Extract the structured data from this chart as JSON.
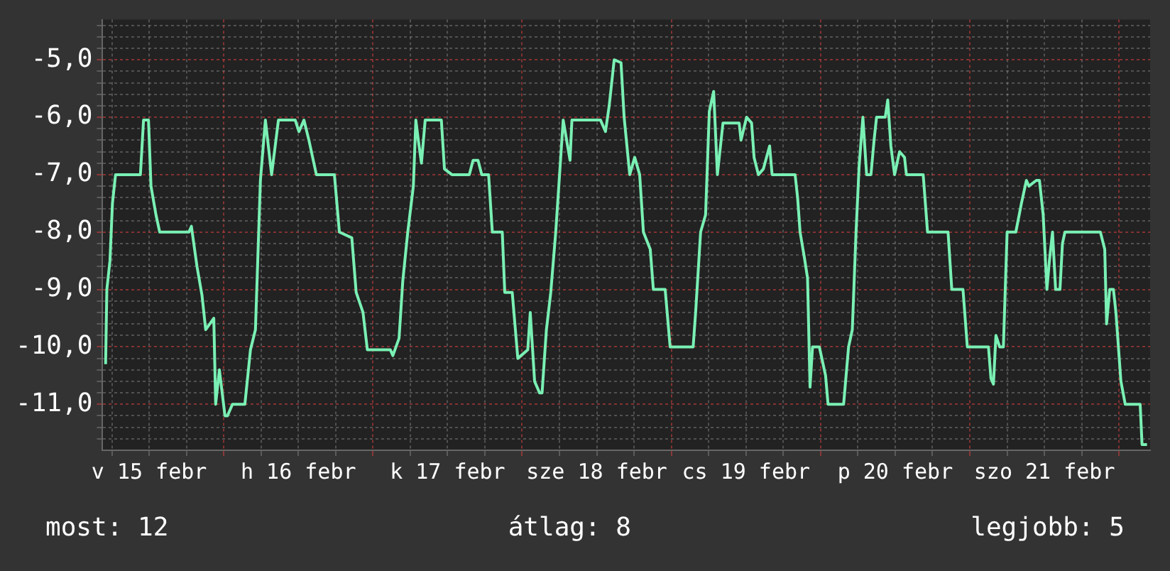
{
  "chart_data": {
    "type": "line",
    "grid": true,
    "legend": false,
    "marker": "none",
    "line_style": "solid",
    "xlim": [
      "--02-15T04:30",
      "--02-22T05:00"
    ],
    "ylim": [
      -11.8,
      -4.3
    ],
    "xticks": [
      {
        "value": "--02-15T06:00",
        "label": null
      },
      {
        "value": "--02-15T12:00",
        "label": "v 15 febr"
      },
      {
        "value": "--02-15T18:00",
        "label": null
      },
      {
        "value": "--02-16T00:00",
        "label": null
      },
      {
        "value": "--02-16T06:00",
        "label": null
      },
      {
        "value": "--02-16T12:00",
        "label": "h 16 febr"
      },
      {
        "value": "--02-16T18:00",
        "label": null
      },
      {
        "value": "--02-17T00:00",
        "label": null
      },
      {
        "value": "--02-17T06:00",
        "label": null
      },
      {
        "value": "--02-17T12:00",
        "label": "k 17 febr"
      },
      {
        "value": "--02-17T18:00",
        "label": null
      },
      {
        "value": "--02-18T00:00",
        "label": null
      },
      {
        "value": "--02-18T06:00",
        "label": null
      },
      {
        "value": "--02-18T12:00",
        "label": "sze 18 febr"
      },
      {
        "value": "--02-18T18:00",
        "label": null
      },
      {
        "value": "--02-19T00:00",
        "label": null
      },
      {
        "value": "--02-19T06:00",
        "label": null
      },
      {
        "value": "--02-19T12:00",
        "label": "cs 19 febr"
      },
      {
        "value": "--02-19T18:00",
        "label": null
      },
      {
        "value": "--02-20T00:00",
        "label": null
      },
      {
        "value": "--02-20T06:00",
        "label": null
      },
      {
        "value": "--02-20T12:00",
        "label": "p 20 febr"
      },
      {
        "value": "--02-20T18:00",
        "label": null
      },
      {
        "value": "--02-21T00:00",
        "label": null
      },
      {
        "value": "--02-21T06:00",
        "label": null
      },
      {
        "value": "--02-21T12:00",
        "label": "szo 21 febr"
      },
      {
        "value": "--02-21T18:00",
        "label": null
      },
      {
        "value": "--02-22T00:00",
        "label": null
      }
    ],
    "yticks": [
      {
        "value": -11.6,
        "label": null
      },
      {
        "value": -11.4,
        "label": null
      },
      {
        "value": -11.2,
        "label": null
      },
      {
        "value": -11,
        "label": "-11,0"
      },
      {
        "value": -10.8,
        "label": null
      },
      {
        "value": -10.6,
        "label": null
      },
      {
        "value": -10.4,
        "label": null
      },
      {
        "value": -10.2,
        "label": null
      },
      {
        "value": -10,
        "label": "-10,0"
      },
      {
        "value": -9.8,
        "label": null
      },
      {
        "value": -9.6,
        "label": null
      },
      {
        "value": -9.4,
        "label": null
      },
      {
        "value": -9.2,
        "label": null
      },
      {
        "value": -9,
        "label": "-9,0"
      },
      {
        "value": -8.8,
        "label": null
      },
      {
        "value": -8.6,
        "label": null
      },
      {
        "value": -8.4,
        "label": null
      },
      {
        "value": -8.2,
        "label": null
      },
      {
        "value": -8,
        "label": "-8,0"
      },
      {
        "value": -7.8,
        "label": null
      },
      {
        "value": -7.6,
        "label": null
      },
      {
        "value": -7.4,
        "label": null
      },
      {
        "value": -7.2,
        "label": null
      },
      {
        "value": -7,
        "label": "-7,0"
      },
      {
        "value": -6.8,
        "label": null
      },
      {
        "value": -6.6,
        "label": null
      },
      {
        "value": -6.4,
        "label": null
      },
      {
        "value": -6.2,
        "label": null
      },
      {
        "value": -6,
        "label": "-6,0"
      },
      {
        "value": -5.8,
        "label": null
      },
      {
        "value": -5.6,
        "label": null
      },
      {
        "value": -5.4,
        "label": null
      },
      {
        "value": -5.2,
        "label": null
      },
      {
        "value": -5,
        "label": "-5,0"
      },
      {
        "value": -4.8,
        "label": null
      },
      {
        "value": -4.6,
        "label": null
      },
      {
        "value": -4.4,
        "label": null
      }
    ],
    "annotations": [
      "most: 12",
      "átlag: 8",
      "legjobb: 5"
    ],
    "series": [
      {
        "color": "#7af0b4",
        "x": [
          "--02-15T05:00",
          "--02-15T05:12",
          "--02-15T05:42",
          "--02-15T06:06",
          "--02-15T06:36",
          "--02-15T10:36",
          "--02-15T11:06",
          "--02-15T11:54",
          "--02-15T12:18",
          "--02-15T13:06",
          "--02-15T13:42",
          "--02-15T18:24",
          "--02-15T18:48",
          "--02-15T19:42",
          "--02-15T20:30",
          "--02-15T21:06",
          "--02-15T22:24",
          "--02-15T22:42",
          "--02-15T23:18",
          "--02-16T00:12",
          "--02-16T00:36",
          "--02-16T01:24",
          "--02-16T03:24",
          "--02-16T04:18",
          "--02-16T05:06",
          "--02-16T05:54",
          "--02-16T06:42",
          "--02-16T07:42",
          "--02-16T08:48",
          "--02-16T11:30",
          "--02-16T12:06",
          "--02-16T12:54",
          "--02-16T13:42",
          "--02-16T14:54",
          "--02-16T17:48",
          "--02-16T18:36",
          "--02-16T20:36",
          "--02-16T21:18",
          "--02-16T22:24",
          "--02-16T23:06",
          "--02-17T02:48",
          "--02-17T03:12",
          "--02-17T04:12",
          "--02-17T04:48",
          "--02-17T05:36",
          "--02-17T06:30",
          "--02-17T06:54",
          "--02-17T07:18",
          "--02-17T07:48",
          "--02-17T08:24",
          "--02-17T11:00",
          "--02-17T11:30",
          "--02-17T12:42",
          "--02-17T15:30",
          "--02-17T16:06",
          "--02-17T16:54",
          "--02-17T17:30",
          "--02-17T18:36",
          "--02-17T19:12",
          "--02-17T20:48",
          "--02-17T21:12",
          "--02-17T22:24",
          "--02-17T23:18",
          "--02-18T00:54",
          "--02-18T01:18",
          "--02-18T02:00",
          "--02-18T02:48",
          "--02-18T03:12",
          "--02-18T03:54",
          "--02-18T04:36",
          "--02-18T05:24",
          "--02-18T06:12",
          "--02-18T06:36",
          "--02-18T07:42",
          "--02-18T08:00",
          "--02-18T12:36",
          "--02-18T13:24",
          "--02-18T14:00",
          "--02-18T14:48",
          "--02-18T15:54",
          "--02-18T16:24",
          "--02-18T17:18",
          "--02-18T18:06",
          "--02-18T18:54",
          "--02-18T19:30",
          "--02-18T20:36",
          "--02-18T21:06",
          "--02-18T23:00",
          "--02-18T23:48",
          "--02-19T03:30",
          "--02-19T03:54",
          "--02-19T04:42",
          "--02-19T05:30",
          "--02-19T06:06",
          "--02-19T06:48",
          "--02-19T07:24",
          "--02-19T08:18",
          "--02-19T10:54",
          "--02-19T11:12",
          "--02-19T12:06",
          "--02-19T12:54",
          "--02-19T13:18",
          "--02-19T14:00",
          "--02-19T14:48",
          "--02-19T15:48",
          "--02-19T16:12",
          "--02-19T19:54",
          "--02-19T20:18",
          "--02-19T20:42",
          "--02-19T21:24",
          "--02-19T21:54",
          "--02-19T22:18",
          "--02-19T22:42",
          "--02-19T23:48",
          "--02-20T00:48",
          "--02-20T01:12",
          "--02-20T03:42",
          "--02-20T04:30",
          "--02-20T05:06",
          "--02-20T05:42",
          "--02-20T06:12",
          "--02-20T06:48",
          "--02-20T07:24",
          "--02-20T08:06",
          "--02-20T08:36",
          "--02-20T09:00",
          "--02-20T10:24",
          "--02-20T10:48",
          "--02-20T11:18",
          "--02-20T11:54",
          "--02-20T12:42",
          "--02-20T13:30",
          "--02-20T13:48",
          "--02-20T16:30",
          "--02-20T17:12",
          "--02-20T20:30",
          "--02-20T21:06",
          "--02-20T22:54",
          "--02-20T23:36",
          "--02-21T03:00",
          "--02-21T03:24",
          "--02-21T03:48",
          "--02-21T04:12",
          "--02-21T04:48",
          "--02-21T05:24",
          "--02-21T06:00",
          "--02-21T07:24",
          "--02-21T08:18",
          "--02-21T09:06",
          "--02-21T09:30",
          "--02-21T10:42",
          "--02-21T11:12",
          "--02-21T11:48",
          "--02-21T12:24",
          "--02-21T12:48",
          "--02-21T13:18",
          "--02-21T13:48",
          "--02-21T14:30",
          "--02-21T14:54",
          "--02-21T15:18",
          "--02-21T21:00",
          "--02-21T21:42",
          "--02-21T22:00",
          "--02-21T22:30",
          "--02-21T23:06",
          "--02-21T23:30",
          "--02-22T00:18",
          "--02-22T01:00",
          "--02-22T03:24",
          "--02-22T03:42",
          "--02-22T04:30"
        ],
        "values": [
          -10.3,
          -9.0,
          -8.5,
          -7.5,
          -7.0,
          -7.0,
          -6.05,
          -6.05,
          -7.2,
          -7.7,
          -8.0,
          -8.0,
          -7.9,
          -8.6,
          -9.1,
          -9.7,
          -9.5,
          -11.0,
          -10.4,
          -11.2,
          -11.2,
          -11.0,
          -11.0,
          -10.05,
          -9.7,
          -7.1,
          -6.05,
          -7.0,
          -6.05,
          -6.05,
          -6.25,
          -6.05,
          -6.4,
          -7.0,
          -7.0,
          -8.0,
          -8.1,
          -9.05,
          -9.4,
          -10.05,
          -10.05,
          -10.15,
          -9.85,
          -8.85,
          -8.0,
          -7.2,
          -6.05,
          -6.4,
          -6.8,
          -6.05,
          -6.05,
          -6.9,
          -7.0,
          -7.0,
          -6.75,
          -6.75,
          -7.0,
          -7.0,
          -8.0,
          -8.0,
          -9.05,
          -9.05,
          -10.2,
          -10.05,
          -9.4,
          -10.6,
          -10.8,
          -10.8,
          -9.7,
          -9.05,
          -8.0,
          -6.7,
          -6.05,
          -6.75,
          -6.05,
          -6.05,
          -6.25,
          -5.8,
          -5.0,
          -5.05,
          -6.0,
          -7.0,
          -6.7,
          -7.0,
          -8.0,
          -8.3,
          -9.0,
          -9.0,
          -10.0,
          -10.0,
          -9.4,
          -8.0,
          -7.7,
          -5.9,
          -5.55,
          -7.0,
          -6.1,
          -6.1,
          -6.4,
          -6.0,
          -6.1,
          -6.7,
          -7.0,
          -6.9,
          -6.5,
          -7.0,
          -7.0,
          -7.4,
          -8.0,
          -8.45,
          -8.8,
          -10.7,
          -10.0,
          -10.0,
          -10.5,
          -11.0,
          -11.0,
          -10.0,
          -9.7,
          -8.0,
          -6.85,
          -6.0,
          -7.0,
          -7.0,
          -6.4,
          -6.0,
          -6.0,
          -5.7,
          -6.5,
          -7.0,
          -6.6,
          -6.7,
          -7.0,
          -7.0,
          -8.0,
          -8.0,
          -9.0,
          -9.0,
          -10.0,
          -10.0,
          -10.55,
          -10.65,
          -9.8,
          -10.0,
          -10.0,
          -8.0,
          -8.0,
          -7.5,
          -7.1,
          -7.2,
          -7.1,
          -7.1,
          -7.7,
          -9.0,
          -8.5,
          -8.0,
          -9.0,
          -9.0,
          -8.2,
          -8.0,
          -8.0,
          -8.3,
          -9.6,
          -9.0,
          -9.0,
          -9.4,
          -10.6,
          -11.0,
          -11.0,
          -11.7,
          -11.7
        ]
      }
    ]
  }
}
